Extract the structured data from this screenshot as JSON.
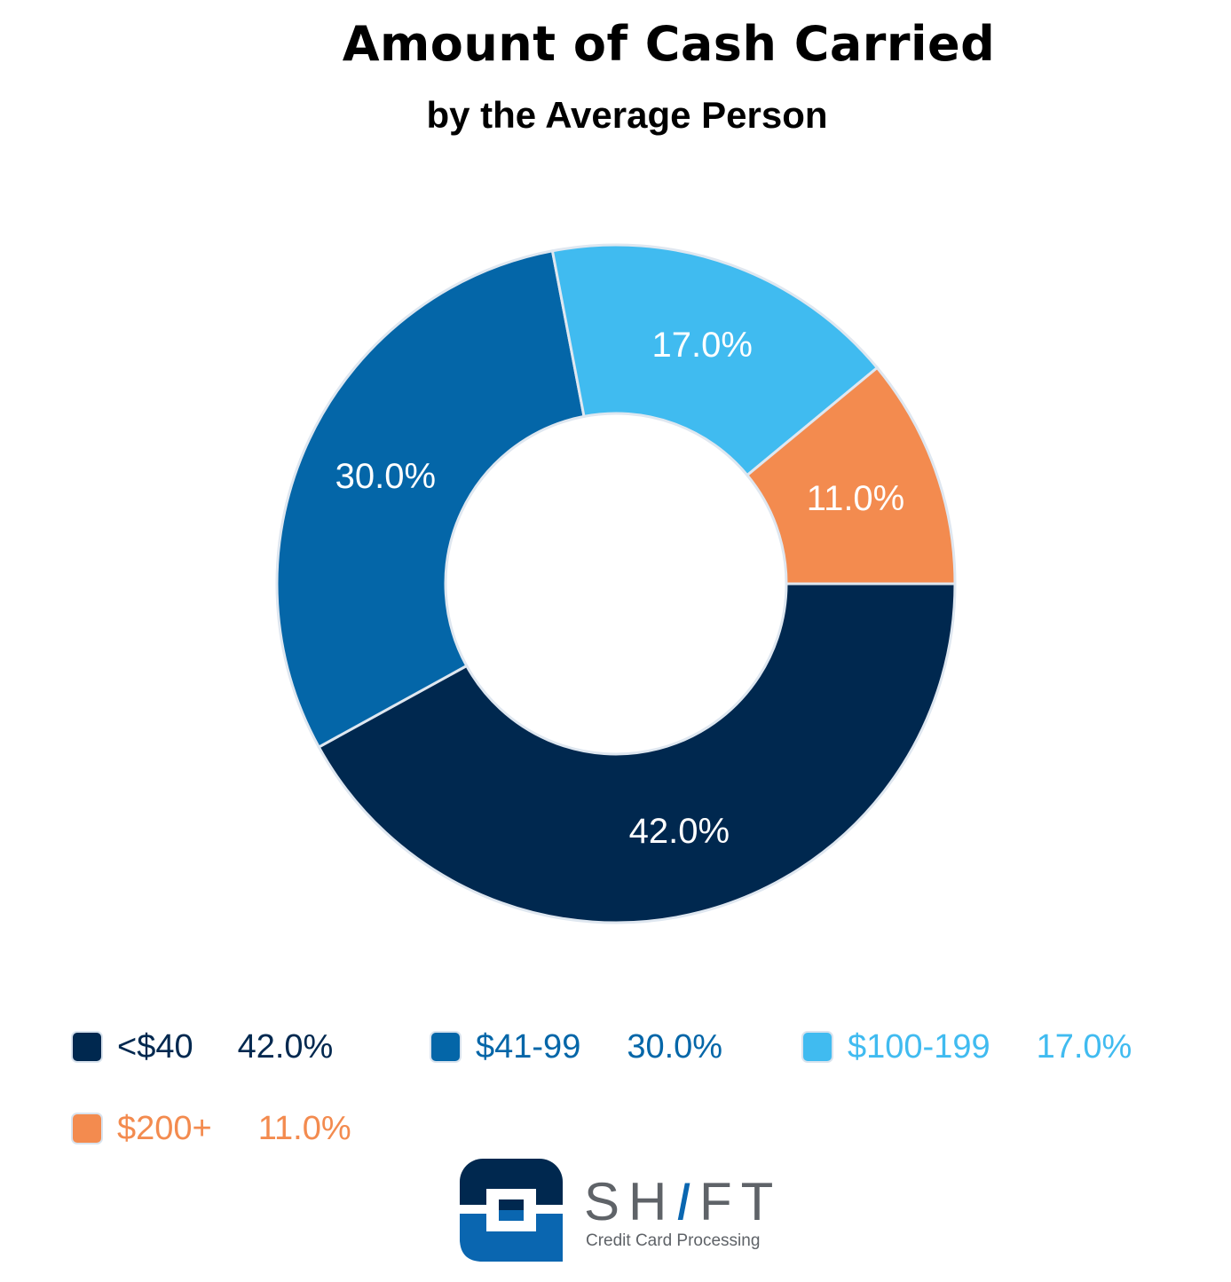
{
  "chart_data": {
    "type": "pie",
    "style": "donut",
    "title": "Amount of Cash Carried",
    "subtitle": "by the Average Person",
    "categories": [
      "<$40",
      "$41-99",
      "$100-199",
      "$200+"
    ],
    "values": [
      42.0,
      30.0,
      17.0,
      11.0
    ],
    "value_labels": [
      "42.0%",
      "30.0%",
      "17.0%",
      "11.0%"
    ],
    "colors": [
      "#00284f",
      "#0466a8",
      "#40bbf0",
      "#f38b4f"
    ],
    "legend_position": "bottom"
  },
  "logo": {
    "word_prefix": "SH",
    "word_slash": "I",
    "word_suffix": "FT",
    "tagline": "Credit Card Processing"
  }
}
